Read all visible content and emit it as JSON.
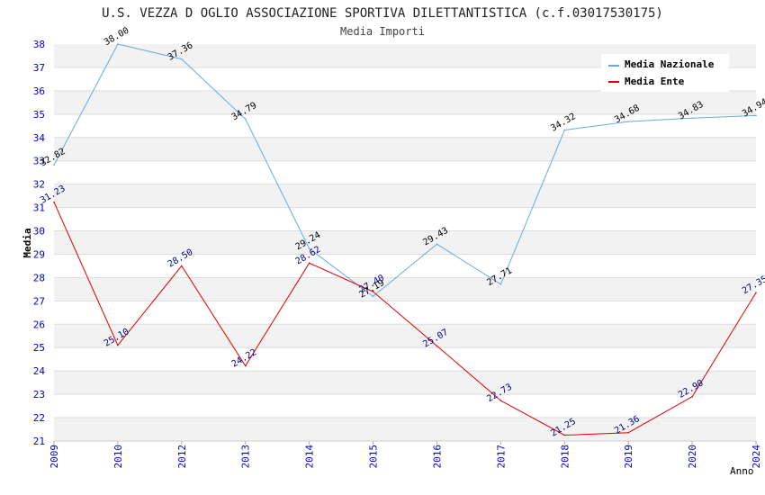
{
  "chart_data": {
    "type": "line",
    "title": "U.S. VEZZA D OGLIO ASSOCIAZIONE SPORTIVA DILETTANTISTICA (c.f.03017530175)",
    "subtitle": "Media Importi",
    "xlabel": "Anno",
    "ylabel": "Media",
    "ylim": [
      21,
      38
    ],
    "yticks": [
      "21",
      "22",
      "23",
      "24",
      "25",
      "26",
      "27",
      "28",
      "29",
      "30",
      "31",
      "32",
      "33",
      "34",
      "35",
      "36",
      "37",
      "38"
    ],
    "categories": [
      "2009",
      "2010",
      "2012",
      "2013",
      "2014",
      "2015",
      "2016",
      "2017",
      "2018",
      "2019",
      "2020",
      "2024"
    ],
    "grid": "horizontal bands",
    "legend_position": "top-right",
    "series": [
      {
        "name": "Media Nazionale",
        "color": "#6aaae0",
        "label_color": "#000000",
        "values": [
          32.82,
          38.0,
          37.36,
          34.79,
          29.24,
          27.19,
          29.43,
          27.71,
          34.32,
          34.68,
          34.83,
          34.94
        ],
        "labels": [
          "32.82",
          "38.00",
          "37.36",
          "34.79",
          "29.24",
          "27.19",
          "29.43",
          "27.71",
          "34.32",
          "34.68",
          "34.83",
          "34.94"
        ]
      },
      {
        "name": "Media Ente",
        "color": "#e00000",
        "label_color": "#000080",
        "values": [
          31.23,
          25.1,
          28.5,
          24.22,
          28.62,
          27.4,
          25.07,
          22.73,
          21.25,
          21.36,
          22.9,
          27.35
        ],
        "labels": [
          "31.23",
          "25.10",
          "28.50",
          "24.22",
          "28.62",
          "27.40",
          "25.07",
          "22.73",
          "21.25",
          "21.36",
          "22.90",
          "27.35"
        ]
      }
    ]
  }
}
